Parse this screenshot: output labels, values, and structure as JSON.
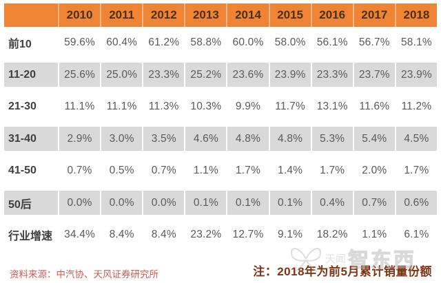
{
  "table": {
    "corner_label": "",
    "years": [
      "2010",
      "2011",
      "2012",
      "2013",
      "2014",
      "2015",
      "2016",
      "2017",
      "2018"
    ],
    "rows": [
      {
        "label": "前10",
        "values": [
          "59.6%",
          "60.4%",
          "61.2%",
          "58.8%",
          "60.0%",
          "58.0%",
          "56.1%",
          "56.7%",
          "58.1%"
        ]
      },
      {
        "label": "11-20",
        "values": [
          "25.6%",
          "25.0%",
          "23.3%",
          "25.2%",
          "23.6%",
          "23.9%",
          "23.3%",
          "23.7%",
          "23.9%"
        ]
      },
      {
        "label": "21-30",
        "values": [
          "11.1%",
          "11.1%",
          "11.3%",
          "10.3%",
          "9.9%",
          "11.7%",
          "13.1%",
          "11.6%",
          "11.2%"
        ]
      },
      {
        "label": "31-40",
        "values": [
          "2.9%",
          "3.0%",
          "3.5%",
          "4.6%",
          "4.8%",
          "4.8%",
          "5.3%",
          "5.4%",
          "4.5%"
        ]
      },
      {
        "label": "41-50",
        "values": [
          "0.7%",
          "0.5%",
          "0.7%",
          "1.1%",
          "1.7%",
          "1.4%",
          "1.7%",
          "2.0%",
          "1.7%"
        ]
      },
      {
        "label": "50后",
        "values": [
          "0.0%",
          "0.0%",
          "0.0%",
          "0.1%",
          "0.1%",
          "0.1%",
          "0.4%",
          "0.7%",
          "0.6%"
        ]
      },
      {
        "label": "行业增速",
        "values": [
          "34.4%",
          "8.4%",
          "8.4%",
          "23.2%",
          "12.7%",
          "9.1%",
          "18.2%",
          "1.1%",
          "6.1%"
        ]
      }
    ]
  },
  "footer": {
    "source": "资料来源：中汽协、天风证券研究所",
    "note": "注：2018年为前5月累计销量份额"
  },
  "watermark": {
    "icon": "butterfly-logo-icon",
    "prefix": "天闻",
    "text": "智东西"
  },
  "colors": {
    "header_bg": "#EE8434",
    "header_text": "#4B3112",
    "stripe_bg": "#D9D9D9",
    "value_text": "#595959",
    "label_text": "#3F3F3F",
    "source_text": "#CE5B53",
    "note_text": "#7E3313"
  },
  "chart_data": {
    "type": "table",
    "title": "中国汽车行业集中度与行业增速（按销量份额）",
    "categories": [
      "2010",
      "2011",
      "2012",
      "2013",
      "2014",
      "2015",
      "2016",
      "2017",
      "2018"
    ],
    "unit": "%",
    "series": [
      {
        "name": "前10",
        "values": [
          59.6,
          60.4,
          61.2,
          58.8,
          60.0,
          58.0,
          56.1,
          56.7,
          58.1
        ]
      },
      {
        "name": "11-20",
        "values": [
          25.6,
          25.0,
          23.3,
          25.2,
          23.6,
          23.9,
          23.3,
          23.7,
          23.9
        ]
      },
      {
        "name": "21-30",
        "values": [
          11.1,
          11.1,
          11.3,
          10.3,
          9.9,
          11.7,
          13.1,
          11.6,
          11.2
        ]
      },
      {
        "name": "31-40",
        "values": [
          2.9,
          3.0,
          3.5,
          4.6,
          4.8,
          4.8,
          5.3,
          5.4,
          4.5
        ]
      },
      {
        "name": "41-50",
        "values": [
          0.7,
          0.5,
          0.7,
          1.1,
          1.7,
          1.4,
          1.7,
          2.0,
          1.7
        ]
      },
      {
        "name": "50后",
        "values": [
          0.0,
          0.0,
          0.0,
          0.1,
          0.1,
          0.1,
          0.4,
          0.7,
          0.6
        ]
      },
      {
        "name": "行业增速",
        "values": [
          34.4,
          8.4,
          8.4,
          23.2,
          12.7,
          9.1,
          18.2,
          1.1,
          6.1
        ]
      }
    ],
    "source_note": "资料来源：中汽协、天风证券研究所",
    "footnote": "注：2018年为前5月累计销量份额"
  }
}
